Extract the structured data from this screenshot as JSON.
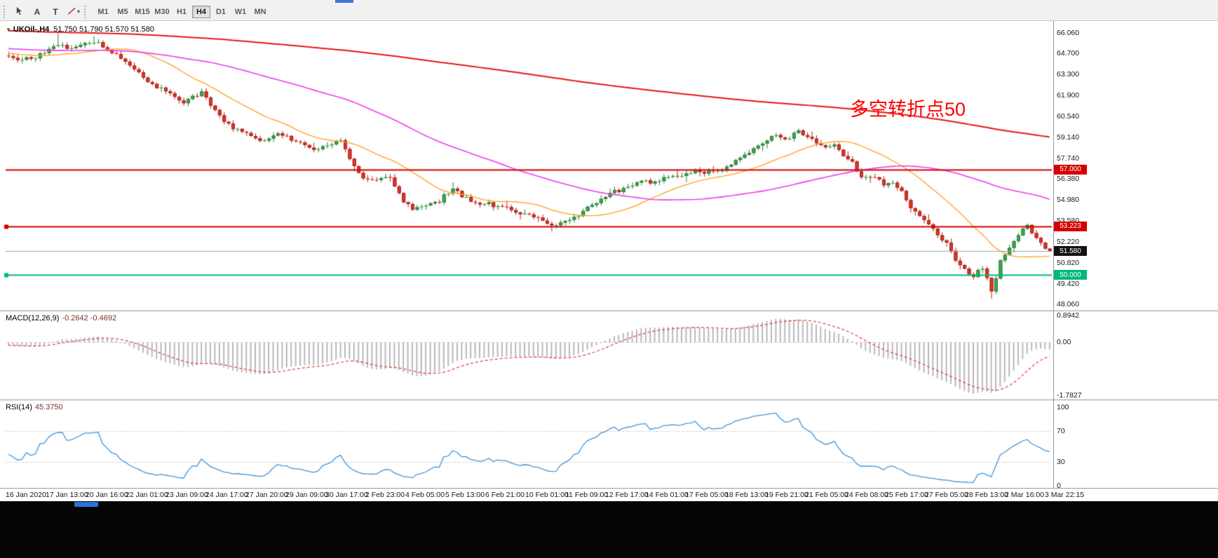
{
  "toolbar": {
    "tools": [
      {
        "name": "cursor-tool",
        "label": ""
      },
      {
        "name": "text-label-tool",
        "label": "A"
      },
      {
        "name": "text-tool",
        "label": "T"
      },
      {
        "name": "trendline-tool",
        "label": ""
      }
    ],
    "timeframes": [
      "M1",
      "M5",
      "M15",
      "M30",
      "H1",
      "H4",
      "D1",
      "W1",
      "MN"
    ],
    "active_timeframe": "H4"
  },
  "chart": {
    "symbol_tf": "UKOil-,H4",
    "ohlc_text": "51.750 51.790 51.570 51.580",
    "annotation": "多空转折点50",
    "price_axis": [
      {
        "v": 66.06,
        "label": "66.060"
      },
      {
        "v": 64.7,
        "label": "64.700"
      },
      {
        "v": 63.3,
        "label": "63.300"
      },
      {
        "v": 61.9,
        "label": "61.900"
      },
      {
        "v": 60.54,
        "label": "60.540"
      },
      {
        "v": 59.14,
        "label": "59.140"
      },
      {
        "v": 57.74,
        "label": "57.740"
      },
      {
        "v": 56.38,
        "label": "56.380"
      },
      {
        "v": 54.98,
        "label": "54.980"
      },
      {
        "v": 53.58,
        "label": "53.580"
      },
      {
        "v": 52.22,
        "label": "52.220"
      },
      {
        "v": 50.82,
        "label": "50.820"
      },
      {
        "v": 49.42,
        "label": "49.420"
      },
      {
        "v": 48.06,
        "label": "48.060"
      }
    ],
    "levels": [
      {
        "v": 57.0,
        "label": "57.000",
        "color": "#d40000",
        "handle": false
      },
      {
        "v": 53.223,
        "label": "53.223",
        "color": "#d40000",
        "handle": true
      },
      {
        "v": 50.0,
        "label": "50.000",
        "color": "#00b879",
        "handle": true
      }
    ],
    "current_price": {
      "v": 51.58,
      "label": "51.580",
      "color": "#111111"
    },
    "time_axis": [
      "16 Jan 2020",
      "17 Jan 13:00",
      "20 Jan 16:00",
      "22 Jan 01:00",
      "23 Jan 09:00",
      "24 Jan 17:00",
      "27 Jan 20:00",
      "29 Jan 09:00",
      "30 Jan 17:00",
      "2 Feb 23:00",
      "4 Feb 05:00",
      "5 Feb 13:00",
      "6 Feb 21:00",
      "10 Feb 01:00",
      "11 Feb 09:00",
      "12 Feb 17:00",
      "14 Feb 01:00",
      "17 Feb 05:00",
      "18 Feb 13:00",
      "19 Feb 21:00",
      "21 Feb 05:00",
      "24 Feb 08:00",
      "25 Feb 17:00",
      "27 Feb 05:00",
      "28 Feb 13:00",
      "2 Mar 16:00",
      "3 Mar 22:15"
    ]
  },
  "macd": {
    "label": "MACD(12,26,9)",
    "values": "-0.2642 -0.4692",
    "params": {
      "fast": 12,
      "slow": 26,
      "signal": 9
    },
    "range": {
      "max": 0.8942,
      "min": -1.7827
    },
    "scale": [
      {
        "v": 0.8942,
        "label": "0.8942"
      },
      {
        "v": 0,
        "label": "0.00"
      },
      {
        "v": -1.7827,
        "label": "-1.7827"
      }
    ]
  },
  "rsi": {
    "label": "RSI(14)",
    "value": "45.3750",
    "period": 14,
    "levels": [
      70,
      30
    ],
    "scale": [
      {
        "v": 100,
        "label": "100"
      },
      {
        "v": 70,
        "label": "70"
      },
      {
        "v": 30,
        "label": "30"
      },
      {
        "v": 0,
        "label": "0"
      }
    ]
  },
  "chart_data": {
    "type": "candlestick",
    "symbol": "UKOil-",
    "timeframe": "H4",
    "ohlc_last": {
      "open": 51.75,
      "high": 51.79,
      "low": 51.57,
      "close": 51.58
    },
    "y_axis": {
      "min": 48.06,
      "max": 66.06
    },
    "index_range": [
      -300,
      232
    ],
    "seed": 42,
    "prehistory_anchors": [
      [
        -300,
        67.4
      ],
      [
        -220,
        66.9
      ],
      [
        -150,
        66.4
      ],
      [
        -90,
        65.7
      ],
      [
        -40,
        65.1
      ],
      [
        -15,
        64.8
      ],
      [
        -1,
        64.55
      ]
    ],
    "anchors": [
      [
        0,
        64.5
      ],
      [
        3,
        64.25
      ],
      [
        6,
        64.4
      ],
      [
        8,
        64.7
      ],
      [
        10,
        65.1
      ],
      [
        11,
        65.35
      ],
      [
        13,
        64.95
      ],
      [
        15,
        65.05
      ],
      [
        17,
        65.3
      ],
      [
        19,
        65.5
      ],
      [
        21,
        65.15
      ],
      [
        23,
        64.8
      ],
      [
        25,
        64.3
      ],
      [
        27,
        63.9
      ],
      [
        29,
        63.4
      ],
      [
        31,
        62.9
      ],
      [
        33,
        62.55
      ],
      [
        35,
        62.3
      ],
      [
        37,
        61.8
      ],
      [
        39,
        61.45
      ],
      [
        41,
        61.85
      ],
      [
        43,
        62.05
      ],
      [
        45,
        61.3
      ],
      [
        47,
        60.5
      ],
      [
        49,
        59.95
      ],
      [
        52,
        59.5
      ],
      [
        54,
        59.2
      ],
      [
        56,
        58.85
      ],
      [
        58,
        59.05
      ],
      [
        60,
        59.45
      ],
      [
        62,
        59.1
      ],
      [
        64,
        58.85
      ],
      [
        66,
        58.6
      ],
      [
        68,
        58.45
      ],
      [
        70,
        58.55
      ],
      [
        72,
        58.65
      ],
      [
        74,
        58.95
      ],
      [
        75,
        58.4
      ],
      [
        76,
        57.8
      ],
      [
        77,
        57.15
      ],
      [
        79,
        56.5
      ],
      [
        81,
        56.25
      ],
      [
        83,
        56.45
      ],
      [
        85,
        56.6
      ],
      [
        86,
        56.0
      ],
      [
        88,
        54.9
      ],
      [
        90,
        54.45
      ],
      [
        92,
        54.4
      ],
      [
        94,
        54.7
      ],
      [
        96,
        54.9
      ],
      [
        98,
        55.5
      ],
      [
        99,
        55.8
      ],
      [
        101,
        55.25
      ],
      [
        103,
        54.95
      ],
      [
        105,
        54.75
      ],
      [
        107,
        54.7
      ],
      [
        109,
        54.55
      ],
      [
        111,
        54.35
      ],
      [
        113,
        54.2
      ],
      [
        115,
        54.05
      ],
      [
        117,
        53.9
      ],
      [
        119,
        53.6
      ],
      [
        121,
        53.35
      ],
      [
        123,
        53.45
      ],
      [
        125,
        53.7
      ],
      [
        127,
        54.0
      ],
      [
        129,
        54.4
      ],
      [
        131,
        54.85
      ],
      [
        133,
        55.2
      ],
      [
        135,
        55.5
      ],
      [
        137,
        55.7
      ],
      [
        139,
        55.95
      ],
      [
        141,
        56.3
      ],
      [
        143,
        56.15
      ],
      [
        145,
        56.35
      ],
      [
        147,
        56.6
      ],
      [
        149,
        56.5
      ],
      [
        151,
        56.7
      ],
      [
        153,
        56.85
      ],
      [
        155,
        56.75
      ],
      [
        157,
        56.9
      ],
      [
        159,
        57.0
      ],
      [
        161,
        57.25
      ],
      [
        163,
        57.75
      ],
      [
        165,
        58.2
      ],
      [
        167,
        58.65
      ],
      [
        169,
        59.0
      ],
      [
        171,
        59.2
      ],
      [
        173,
        58.95
      ],
      [
        175,
        59.35
      ],
      [
        176,
        59.5
      ],
      [
        178,
        59.15
      ],
      [
        180,
        58.7
      ],
      [
        182,
        58.45
      ],
      [
        184,
        58.55
      ],
      [
        186,
        57.95
      ],
      [
        188,
        57.45
      ],
      [
        189,
        56.9
      ],
      [
        191,
        56.35
      ],
      [
        193,
        56.6
      ],
      [
        195,
        55.95
      ],
      [
        197,
        56.2
      ],
      [
        199,
        55.45
      ],
      [
        201,
        54.5
      ],
      [
        203,
        53.95
      ],
      [
        205,
        53.35
      ],
      [
        207,
        52.65
      ],
      [
        209,
        52.1
      ],
      [
        211,
        51.05
      ],
      [
        213,
        50.35
      ],
      [
        215,
        49.85
      ],
      [
        216,
        50.2
      ],
      [
        217,
        50.55
      ],
      [
        218,
        49.7
      ],
      [
        219,
        48.95
      ],
      [
        220,
        49.85
      ],
      [
        221,
        50.9
      ],
      [
        222,
        51.45
      ],
      [
        223,
        51.75
      ],
      [
        224,
        52.15
      ],
      [
        225,
        52.6
      ],
      [
        226,
        52.95
      ],
      [
        227,
        53.25
      ],
      [
        228,
        52.9
      ],
      [
        229,
        52.45
      ],
      [
        230,
        52.15
      ],
      [
        231,
        51.9
      ],
      [
        232,
        51.58
      ]
    ],
    "spikes": [
      {
        "i": 11,
        "high": 66.05
      },
      {
        "i": 19,
        "high": 65.85
      },
      {
        "i": 99,
        "high": 56.15
      },
      {
        "i": 121,
        "low": 53.08
      },
      {
        "i": 176,
        "high": 59.72
      },
      {
        "i": 219,
        "low": 48.42
      }
    ],
    "moving_averages": [
      {
        "period": 21,
        "color": "#ff9f1e",
        "width": 1.3
      },
      {
        "period": 68,
        "color": "#ec3cec",
        "width": 1.6
      },
      {
        "period": 300,
        "color": "#e81717",
        "width": 2
      }
    ],
    "colors": {
      "up": "#41a94f",
      "up_border": "#2a7a35",
      "down": "#dd3529",
      "down_border": "#a9221a",
      "macd_hist": "#b8b8b8",
      "macd_signal": "#e93737",
      "rsi_line": "#3f94d9",
      "level_dash": "#c8c8c8",
      "current_line": "#9aa0a6"
    }
  }
}
